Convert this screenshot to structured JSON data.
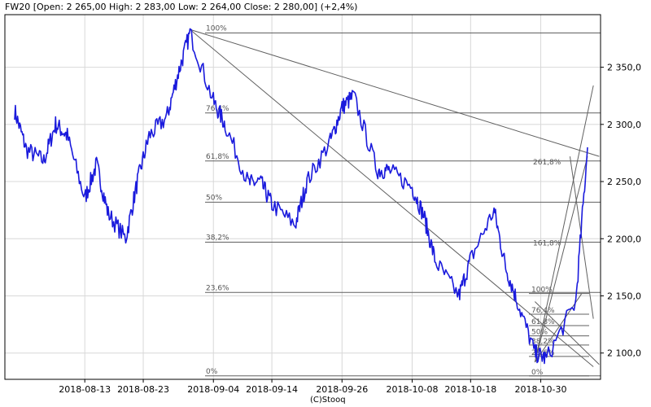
{
  "header": {
    "text": "FW20 [Open: 2 265,00  High: 2 283,00  Low: 2 264,00  Close: 2 280,00] (+2,4%)"
  },
  "credit": "(C)Stooq",
  "colors": {
    "price_line": "#1a1adc",
    "grid": "#d8d8d8",
    "study_line": "#606060"
  },
  "chart_data": {
    "type": "line",
    "title": "FW20",
    "x_tick_labels": [
      "2018-08-13",
      "2018-08-23",
      "2018-09-04",
      "2018-09-14",
      "2018-09-26",
      "2018-10-08",
      "2018-10-18",
      "2018-10-30"
    ],
    "y_ticks": [
      2100,
      2150,
      2200,
      2250,
      2300,
      2350
    ],
    "y_tick_labels": [
      "2 100,0",
      "2 150,0",
      "2 200,0",
      "2 250,0",
      "2 300,0",
      "2 350,0"
    ],
    "ylim": [
      2077,
      2396
    ],
    "grid": true,
    "series": [
      {
        "x": [
          "2018-08-01",
          "2018-08-03",
          "2018-08-06",
          "2018-08-08",
          "2018-08-10",
          "2018-08-13",
          "2018-08-15",
          "2018-08-17",
          "2018-08-20",
          "2018-08-22",
          "2018-08-24",
          "2018-08-27",
          "2018-08-29",
          "2018-08-31",
          "2018-09-04",
          "2018-09-06",
          "2018-09-10",
          "2018-09-12",
          "2018-09-14",
          "2018-09-18",
          "2018-09-20",
          "2018-09-24",
          "2018-09-26",
          "2018-09-28",
          "2018-10-02",
          "2018-10-04",
          "2018-10-08",
          "2018-10-10",
          "2018-10-12",
          "2018-10-16",
          "2018-10-18",
          "2018-10-22",
          "2018-10-24",
          "2018-10-26",
          "2018-10-29",
          "2018-10-31",
          "2018-11-05",
          "2018-11-07"
        ],
        "values": [
          2312,
          2278,
          2268,
          2300,
          2290,
          2235,
          2265,
          2222,
          2200,
          2250,
          2290,
          2306,
          2345,
          2380,
          2320,
          2300,
          2248,
          2250,
          2230,
          2212,
          2250,
          2285,
          2315,
          2325,
          2260,
          2260,
          2245,
          2220,
          2180,
          2150,
          2182,
          2225,
          2175,
          2145,
          2100,
          2095,
          2145,
          2280
        ]
      }
    ],
    "study": {
      "fib_retracement_labels": [
        "100%",
        "76,4%",
        "61,8%",
        "50%",
        "38,2%",
        "23,6%",
        "0%"
      ],
      "fib_retracement_values": [
        2380,
        2310,
        2268,
        2232,
        2197,
        2153,
        2080
      ],
      "fib_extension_labels": [
        "261,8%",
        "161,8%"
      ],
      "fib_extension_values": [
        2268,
        2197
      ],
      "small_fib_labels": [
        "100%",
        "76,4%",
        "61,8%",
        "50%",
        "38,2%",
        "23,6%",
        "0%"
      ],
      "small_fib_values": [
        2152,
        2134,
        2124,
        2115,
        2107,
        2097,
        2080
      ]
    }
  }
}
